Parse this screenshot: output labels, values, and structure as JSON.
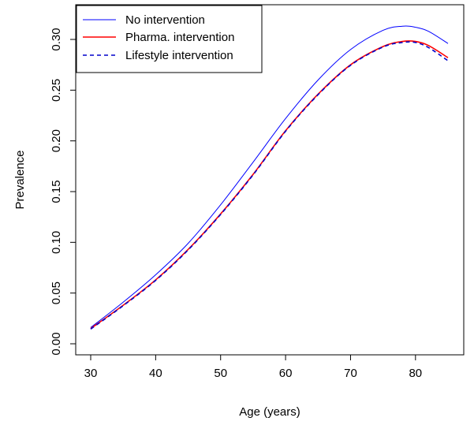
{
  "chart_data": {
    "type": "line",
    "title": "",
    "xlabel": "Age (years)",
    "ylabel": "Prevalence",
    "xlim": [
      30,
      85
    ],
    "ylim": [
      0.0,
      0.31
    ],
    "x_ticks": [
      30,
      40,
      50,
      60,
      70,
      80
    ],
    "x_tick_labels": [
      "30",
      "40",
      "50",
      "60",
      "70",
      "80"
    ],
    "y_ticks": [
      0.0,
      0.05,
      0.1,
      0.15,
      0.2,
      0.25,
      0.3
    ],
    "y_tick_labels": [
      "0.00",
      "0.05",
      "0.10",
      "0.15",
      "0.20",
      "0.25",
      "0.30"
    ],
    "grid": false,
    "legend_position": "top-left",
    "x": [
      30,
      35,
      40,
      45,
      50,
      55,
      60,
      65,
      70,
      75,
      78,
      80,
      82,
      85
    ],
    "series": [
      {
        "name": "No intervention",
        "color": "#0000ff",
        "style": "solid",
        "values": [
          0.016,
          0.041,
          0.068,
          0.099,
          0.137,
          0.179,
          0.222,
          0.26,
          0.29,
          0.309,
          0.313,
          0.312,
          0.308,
          0.296
        ]
      },
      {
        "name": "Pharma. intervention",
        "color": "#ff0000",
        "style": "solid",
        "values": [
          0.015,
          0.038,
          0.063,
          0.093,
          0.128,
          0.167,
          0.21,
          0.246,
          0.275,
          0.293,
          0.298,
          0.298,
          0.294,
          0.282
        ]
      },
      {
        "name": "Lifestyle intervention",
        "color": "#0000cc",
        "style": "dashed",
        "values": [
          0.0145,
          0.0375,
          0.0625,
          0.0925,
          0.1275,
          0.1665,
          0.2095,
          0.2455,
          0.2745,
          0.2925,
          0.297,
          0.297,
          0.292,
          0.279
        ]
      }
    ]
  }
}
